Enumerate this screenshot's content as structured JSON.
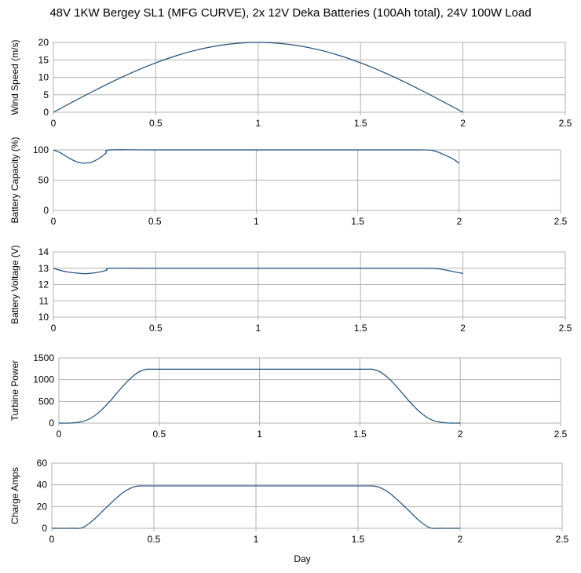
{
  "title": "48V 1KW Bergey SL1 (MFG CURVE), 2x 12V Deka Batteries (100Ah total), 24V 100W Load",
  "xlabel": "Day",
  "chart_data": [
    {
      "type": "line",
      "ylabel": "Wind Speed (m/s)",
      "xlim": [
        0,
        2.5
      ],
      "ylim": [
        0,
        20
      ],
      "xticks": [
        "0",
        "0.5",
        "1",
        "1.5",
        "2",
        "2.5"
      ],
      "yticks": [
        "0",
        "5",
        "10",
        "15",
        "20"
      ],
      "grid": true,
      "color": "#1f4e79",
      "x": [
        0,
        0.1,
        0.2,
        0.3,
        0.4,
        0.5,
        0.6,
        0.7,
        0.8,
        0.9,
        1.0,
        1.1,
        1.2,
        1.3,
        1.4,
        1.5,
        1.6,
        1.7,
        1.8,
        1.9,
        2.0
      ],
      "y": [
        0,
        3.13,
        6.18,
        9.08,
        11.76,
        14.14,
        16.18,
        17.82,
        19.02,
        19.75,
        20,
        19.75,
        19.02,
        17.82,
        16.18,
        14.14,
        11.76,
        9.08,
        6.18,
        3.13,
        0
      ]
    },
    {
      "type": "line",
      "ylabel": "Battery Capacity (%)",
      "xlim": [
        0,
        2.5
      ],
      "ylim": [
        0,
        100
      ],
      "xticks": [
        "0",
        "0.5",
        "1",
        "1.5",
        "2",
        "2.5"
      ],
      "yticks": [
        "0",
        "50",
        "100"
      ],
      "grid": true,
      "color": "#1f4e79",
      "x": [
        0,
        0.03,
        0.07,
        0.11,
        0.15,
        0.19,
        0.23,
        0.26,
        0.28,
        0.5,
        1.0,
        1.5,
        1.8,
        1.87,
        1.92,
        1.97,
        2.0
      ],
      "y": [
        100,
        96,
        88,
        81,
        78,
        80,
        87,
        95,
        100,
        100,
        100,
        100,
        100,
        99,
        93,
        85,
        78
      ]
    },
    {
      "type": "line",
      "ylabel": "Battery Voltage (V)",
      "xlim": [
        0,
        2.5
      ],
      "ylim": [
        10,
        14
      ],
      "xticks": [
        "0",
        "0.5",
        "1",
        "1.5",
        "2",
        "2.5"
      ],
      "yticks": [
        "10",
        "11",
        "12",
        "13",
        "14"
      ],
      "grid": true,
      "color": "#1f4e79",
      "x": [
        0,
        0.04,
        0.08,
        0.12,
        0.15,
        0.19,
        0.23,
        0.26,
        0.28,
        0.5,
        1.0,
        1.5,
        1.8,
        1.87,
        1.92,
        1.97,
        2.0
      ],
      "y": [
        13.0,
        12.85,
        12.75,
        12.7,
        12.67,
        12.7,
        12.78,
        12.88,
        13.0,
        13.0,
        13.0,
        13.0,
        13.0,
        12.98,
        12.88,
        12.75,
        12.68
      ]
    },
    {
      "type": "line",
      "ylabel": "Turbine Power",
      "xlim": [
        0,
        2.5
      ],
      "ylim": [
        0,
        1500
      ],
      "xticks": [
        "0",
        "0.5",
        "1",
        "1.5",
        "2",
        "2.5"
      ],
      "yticks": [
        "0",
        "500",
        "1000",
        "1500"
      ],
      "grid": true,
      "color": "#1f4e79",
      "x": [
        0,
        0.05,
        0.1,
        0.15,
        0.2,
        0.25,
        0.3,
        0.35,
        0.4,
        0.44,
        0.5,
        1.0,
        1.5,
        1.56,
        1.6,
        1.65,
        1.7,
        1.75,
        1.8,
        1.85,
        1.9,
        1.95,
        2.0
      ],
      "y": [
        0,
        0,
        20,
        90,
        250,
        480,
        750,
        1000,
        1180,
        1240,
        1240,
        1240,
        1240,
        1240,
        1180,
        1000,
        750,
        480,
        250,
        90,
        20,
        0,
        0
      ]
    },
    {
      "type": "line",
      "ylabel": "Charge Amps",
      "xlim": [
        0,
        2.5
      ],
      "ylim": [
        0,
        60
      ],
      "xticks": [
        "0",
        "0.5",
        "1",
        "1.5",
        "2",
        "2.5"
      ],
      "yticks": [
        "0",
        "20",
        "40",
        "60"
      ],
      "grid": true,
      "color": "#1f4e79",
      "x": [
        0,
        0.1,
        0.15,
        0.2,
        0.25,
        0.3,
        0.35,
        0.4,
        0.44,
        0.5,
        1.0,
        1.5,
        1.56,
        1.6,
        1.65,
        1.7,
        1.75,
        1.8,
        1.85,
        1.9,
        2.0
      ],
      "y": [
        0,
        0,
        0.5,
        7,
        16,
        25,
        33,
        38,
        39,
        39,
        39,
        39,
        39,
        38,
        33,
        25,
        16,
        7,
        0.5,
        0,
        0
      ]
    }
  ]
}
